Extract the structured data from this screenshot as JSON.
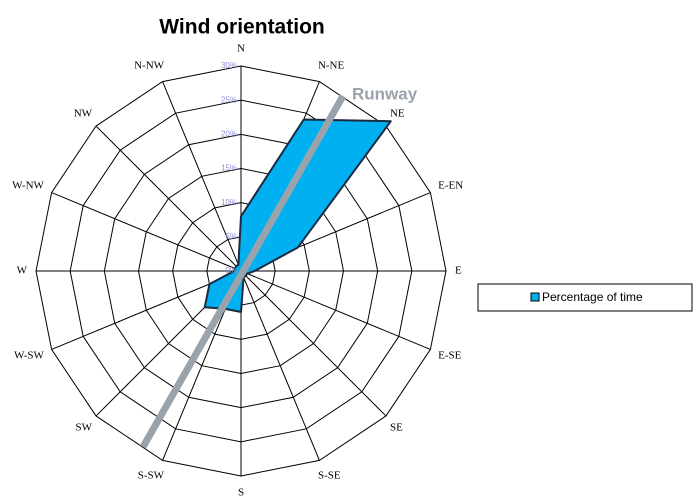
{
  "chart_data": {
    "type": "radar",
    "title": "Wind orientation",
    "categories": [
      "N",
      "N-NE",
      "NE",
      "E-EN",
      "E",
      "E-SE",
      "SE",
      "S-SE",
      "S",
      "S-SW",
      "SW",
      "W-SW",
      "W",
      "W-NW",
      "NW",
      "N-NW"
    ],
    "series": [
      {
        "name": "Percentage of time",
        "color": "#00b0f0",
        "values": [
          8,
          24,
          31,
          9,
          2,
          1,
          1,
          1,
          6,
          6,
          7.5,
          5,
          1,
          1,
          1,
          1
        ]
      }
    ],
    "ylim": [
      0,
      30
    ],
    "yticks": [
      {
        "value": 0,
        "label": "0%"
      },
      {
        "value": 5,
        "label": "5%"
      },
      {
        "value": 10,
        "label": "10%"
      },
      {
        "value": 15,
        "label": "15%"
      },
      {
        "value": 20,
        "label": "20%"
      },
      {
        "value": 25,
        "label": "25%"
      },
      {
        "value": 30,
        "label": "30%"
      }
    ],
    "grid": true,
    "annotation": "Runway"
  }
}
